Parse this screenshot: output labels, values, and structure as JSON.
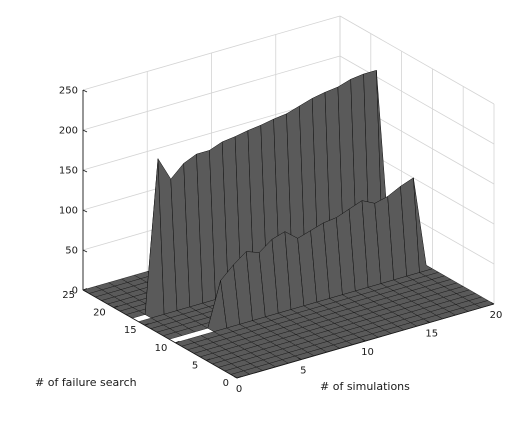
{
  "chart_data": {
    "type": "surface",
    "x_label": "# of simulations",
    "y_label": "# of failure search",
    "x_ticks": [
      "0",
      "5",
      "10",
      "15",
      "20"
    ],
    "y_ticks": [
      "0",
      "5",
      "10",
      "15",
      "20",
      "25"
    ],
    "z_ticks": [
      "0",
      "50",
      "100",
      "150",
      "200",
      "250"
    ],
    "xlim": [
      0,
      20
    ],
    "ylim": [
      0,
      25
    ],
    "zlim": [
      0,
      250
    ],
    "grid": true,
    "colors": {
      "surface": "#5a5a5a",
      "edge": "#111111",
      "light_face": "#d8d8d8"
    },
    "ridges": [
      {
        "y": 17,
        "x": [
          0,
          1,
          2,
          3,
          4,
          5,
          6,
          7,
          8,
          9,
          10,
          11,
          12,
          13,
          14,
          15,
          16,
          17,
          18,
          19,
          20
        ],
        "z": [
          0,
          0,
          190,
          160,
          175,
          182,
          182,
          188,
          190,
          193,
          195,
          198,
          200,
          205,
          210,
          213,
          215,
          220,
          222,
          222,
          0
        ]
      },
      {
        "y": 11,
        "x": [
          0,
          1,
          2,
          3,
          4,
          5,
          6,
          7,
          8,
          9,
          10,
          11,
          12,
          13,
          14,
          15,
          16,
          17,
          18,
          19,
          20
        ],
        "z": [
          0,
          0,
          0,
          0,
          55,
          70,
          82,
          76,
          88,
          93,
          80,
          85,
          90,
          92,
          98,
          104,
          96,
          100,
          108,
          114,
          0
        ]
      }
    ]
  }
}
